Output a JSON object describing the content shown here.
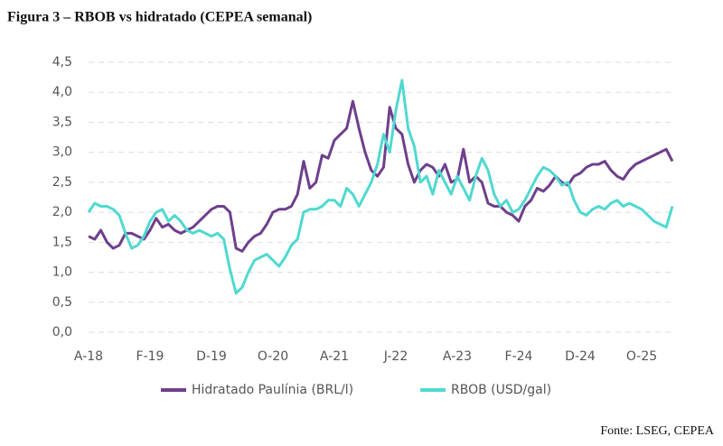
{
  "title": "Figura 3 – RBOB vs hidratado (CEPEA semanal)",
  "source": "Fonte: LSEG, CEPEA",
  "chart_data": {
    "type": "line",
    "categories": [
      "A-18",
      null,
      null,
      null,
      null,
      null,
      null,
      null,
      null,
      null,
      "F-19",
      null,
      null,
      null,
      null,
      null,
      null,
      null,
      null,
      null,
      "D-19",
      null,
      null,
      null,
      null,
      null,
      null,
      null,
      null,
      null,
      "O-20",
      null,
      null,
      null,
      null,
      null,
      null,
      null,
      null,
      null,
      "A-21",
      null,
      null,
      null,
      null,
      null,
      null,
      null,
      null,
      null,
      "J-22",
      null,
      null,
      null,
      null,
      null,
      null,
      null,
      null,
      null,
      "A-23",
      null,
      null,
      null,
      null,
      null,
      null,
      null,
      null,
      null,
      "F-24",
      null,
      null,
      null,
      null,
      null,
      null,
      null,
      null,
      null,
      "D-24",
      null,
      null,
      null,
      null,
      null,
      null,
      null,
      null,
      null,
      "O-25",
      null,
      null,
      null,
      null,
      null
    ],
    "series": [
      {
        "name": "Hidratado Paulínia (BRL/l)",
        "color": "#6e3f8c",
        "values": [
          1.6,
          1.55,
          1.7,
          1.5,
          1.4,
          1.45,
          1.65,
          1.65,
          1.6,
          1.55,
          1.7,
          1.9,
          1.75,
          1.8,
          1.7,
          1.65,
          1.7,
          1.75,
          1.85,
          1.95,
          2.05,
          2.1,
          2.1,
          2.0,
          1.4,
          1.35,
          1.5,
          1.6,
          1.65,
          1.8,
          2.0,
          2.05,
          2.05,
          2.1,
          2.3,
          2.85,
          2.4,
          2.5,
          2.95,
          2.9,
          3.2,
          3.3,
          3.4,
          3.85,
          3.4,
          3.0,
          2.7,
          2.6,
          2.75,
          3.75,
          3.4,
          3.3,
          2.8,
          2.5,
          2.7,
          2.8,
          2.75,
          2.6,
          2.8,
          2.5,
          2.55,
          3.05,
          2.5,
          2.6,
          2.5,
          2.15,
          2.1,
          2.1,
          2.0,
          1.95,
          1.85,
          2.1,
          2.2,
          2.4,
          2.35,
          2.45,
          2.6,
          2.5,
          2.45,
          2.6,
          2.65,
          2.75,
          2.8,
          2.8,
          2.85,
          2.7,
          2.6,
          2.55,
          2.7,
          2.8,
          2.85,
          2.9,
          2.95,
          3.0,
          3.05,
          2.85
        ]
      },
      {
        "name": "RBOB (USD/gal)",
        "color": "#4fd9d0",
        "values": [
          2.0,
          2.15,
          2.1,
          2.1,
          2.05,
          1.95,
          1.65,
          1.4,
          1.45,
          1.6,
          1.85,
          2.0,
          2.05,
          1.85,
          1.95,
          1.85,
          1.7,
          1.65,
          1.7,
          1.65,
          1.6,
          1.65,
          1.55,
          1.05,
          0.65,
          0.75,
          1.0,
          1.2,
          1.25,
          1.3,
          1.2,
          1.1,
          1.25,
          1.45,
          1.55,
          2.0,
          2.05,
          2.05,
          2.1,
          2.2,
          2.2,
          2.1,
          2.4,
          2.3,
          2.1,
          2.3,
          2.5,
          2.8,
          3.3,
          3.0,
          3.7,
          4.2,
          3.4,
          3.1,
          2.5,
          2.6,
          2.3,
          2.7,
          2.5,
          2.3,
          2.6,
          2.4,
          2.2,
          2.6,
          2.9,
          2.7,
          2.3,
          2.1,
          2.2,
          2.0,
          2.05,
          2.2,
          2.4,
          2.6,
          2.75,
          2.7,
          2.6,
          2.45,
          2.5,
          2.2,
          2.0,
          1.95,
          2.05,
          2.1,
          2.05,
          2.15,
          2.2,
          2.1,
          2.15,
          2.1,
          2.05,
          1.95,
          1.85,
          1.8,
          1.75,
          2.1
        ]
      }
    ],
    "ylim": [
      0,
      4.5
    ],
    "yticks": [
      {
        "value": 0,
        "label": "0,0"
      },
      {
        "value": 0.5,
        "label": "0,5"
      },
      {
        "value": 1,
        "label": "1,0"
      },
      {
        "value": 1.5,
        "label": "1,5"
      },
      {
        "value": 2,
        "label": "2,0"
      },
      {
        "value": 2.5,
        "label": "2,5"
      },
      {
        "value": 3,
        "label": "3,0"
      },
      {
        "value": 3.5,
        "label": "3,5"
      },
      {
        "value": 4,
        "label": "4,0"
      },
      {
        "value": 4.5,
        "label": "4,5"
      }
    ],
    "grid": true
  }
}
